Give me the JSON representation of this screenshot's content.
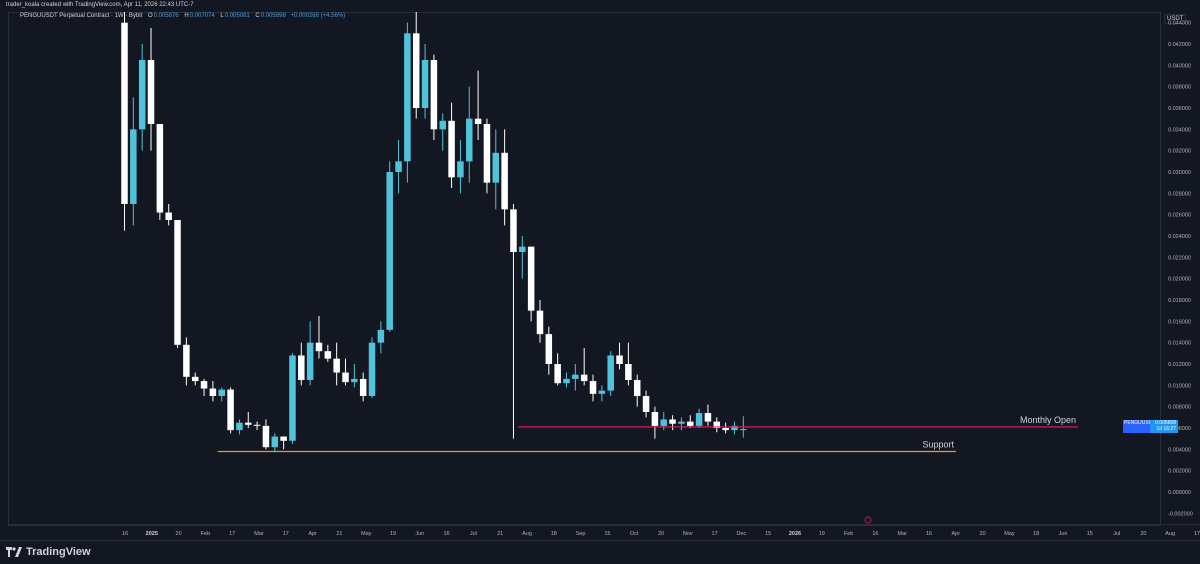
{
  "topbar": {
    "text": "trader_koala created with TradingView.com, Apr 11, 2026 22:43 UTC-7"
  },
  "legend": {
    "symbol": "PENGUUSDT Perpetual Contract · 1W · Bybit",
    "o_label": "O",
    "o_value": "0.005876",
    "h_label": "H",
    "h_value": "0.007074",
    "l_label": "L",
    "l_value": "0.005081",
    "c_label": "C",
    "c_value": "0.005898",
    "change": "+0.000268 (+4.56%)"
  },
  "currency_label": "USDT",
  "price_tag": {
    "symbol": "PENGUUSDT.P",
    "price": "0.005898",
    "countdown": "1d 16:27"
  },
  "footer": {
    "brand": "TradingView"
  },
  "colors": {
    "up": "#4fc3d9",
    "down": "#ffffff",
    "monthly_open": "#e91e63",
    "support": "#ff9800",
    "background": "#131722"
  },
  "chart_data": {
    "type": "candlestick",
    "title": "PENGUUSDT Perpetual Contract · 1W · Bybit",
    "ylim": [
      -0.003,
      0.045
    ],
    "y_ticks": [
      "0.044000",
      "0.042000",
      "0.040000",
      "0.038000",
      "0.036000",
      "0.034000",
      "0.032000",
      "0.030000",
      "0.028000",
      "0.026000",
      "0.024000",
      "0.022000",
      "0.020000",
      "0.018000",
      "0.016000",
      "0.014000",
      "0.012000",
      "0.010000",
      "0.008000",
      "0.006000",
      "0.004000",
      "0.002000",
      "0.000000",
      "-0.002000"
    ],
    "x_ticks": [
      "16",
      "2025",
      "20",
      "Feb",
      "17",
      "Mar",
      "17",
      "Apr",
      "21",
      "May",
      "19",
      "Jun",
      "16",
      "Jul",
      "21",
      "Aug",
      "18",
      "Sep",
      "15",
      "Oct",
      "20",
      "Nov",
      "17",
      "Dec",
      "15",
      "2026",
      "19",
      "Feb",
      "16",
      "Mar",
      "16",
      "Apr",
      "20",
      "May",
      "18",
      "Jun",
      "15",
      "Jul",
      "20",
      "Aug",
      "17",
      "Sep",
      "21",
      "Oct"
    ],
    "x_ticks_bold": [
      "2025",
      "2026"
    ],
    "candles": [
      {
        "o": 0.044,
        "h": 0.05,
        "l": 0.0245,
        "c": 0.027
      },
      {
        "o": 0.027,
        "h": 0.037,
        "l": 0.025,
        "c": 0.034
      },
      {
        "o": 0.034,
        "h": 0.042,
        "l": 0.032,
        "c": 0.0405
      },
      {
        "o": 0.0405,
        "h": 0.0435,
        "l": 0.032,
        "c": 0.0345
      },
      {
        "o": 0.0345,
        "h": 0.0345,
        "l": 0.0255,
        "c": 0.0262
      },
      {
        "o": 0.0262,
        "h": 0.027,
        "l": 0.025,
        "c": 0.0255
      },
      {
        "o": 0.0255,
        "h": 0.0255,
        "l": 0.0135,
        "c": 0.0138
      },
      {
        "o": 0.0138,
        "h": 0.0145,
        "l": 0.01,
        "c": 0.0108
      },
      {
        "o": 0.0108,
        "h": 0.0112,
        "l": 0.01,
        "c": 0.0104
      },
      {
        "o": 0.0104,
        "h": 0.0106,
        "l": 0.009,
        "c": 0.0097
      },
      {
        "o": 0.0097,
        "h": 0.0104,
        "l": 0.0085,
        "c": 0.009
      },
      {
        "o": 0.009,
        "h": 0.0098,
        "l": 0.0085,
        "c": 0.0096
      },
      {
        "o": 0.0096,
        "h": 0.0098,
        "l": 0.0055,
        "c": 0.0058
      },
      {
        "o": 0.0058,
        "h": 0.0068,
        "l": 0.0054,
        "c": 0.0065
      },
      {
        "o": 0.0065,
        "h": 0.0075,
        "l": 0.006,
        "c": 0.0063
      },
      {
        "o": 0.0063,
        "h": 0.0066,
        "l": 0.0058,
        "c": 0.0062
      },
      {
        "o": 0.0062,
        "h": 0.0068,
        "l": 0.004,
        "c": 0.0042
      },
      {
        "o": 0.0042,
        "h": 0.0055,
        "l": 0.0038,
        "c": 0.0052
      },
      {
        "o": 0.0052,
        "h": 0.0052,
        "l": 0.004,
        "c": 0.0048
      },
      {
        "o": 0.0048,
        "h": 0.013,
        "l": 0.0045,
        "c": 0.0128
      },
      {
        "o": 0.0128,
        "h": 0.014,
        "l": 0.01,
        "c": 0.0105
      },
      {
        "o": 0.0105,
        "h": 0.016,
        "l": 0.01,
        "c": 0.014
      },
      {
        "o": 0.014,
        "h": 0.0165,
        "l": 0.0125,
        "c": 0.0132
      },
      {
        "o": 0.0132,
        "h": 0.0138,
        "l": 0.0122,
        "c": 0.0125
      },
      {
        "o": 0.0125,
        "h": 0.014,
        "l": 0.01,
        "c": 0.0112
      },
      {
        "o": 0.0112,
        "h": 0.0125,
        "l": 0.01,
        "c": 0.0103
      },
      {
        "o": 0.0103,
        "h": 0.012,
        "l": 0.0098,
        "c": 0.0106
      },
      {
        "o": 0.0106,
        "h": 0.0112,
        "l": 0.0085,
        "c": 0.009
      },
      {
        "o": 0.009,
        "h": 0.0145,
        "l": 0.0088,
        "c": 0.014
      },
      {
        "o": 0.014,
        "h": 0.016,
        "l": 0.013,
        "c": 0.0152
      },
      {
        "o": 0.0152,
        "h": 0.031,
        "l": 0.015,
        "c": 0.03
      },
      {
        "o": 0.03,
        "h": 0.033,
        "l": 0.028,
        "c": 0.031
      },
      {
        "o": 0.031,
        "h": 0.044,
        "l": 0.029,
        "c": 0.043
      },
      {
        "o": 0.043,
        "h": 0.05,
        "l": 0.035,
        "c": 0.036
      },
      {
        "o": 0.036,
        "h": 0.042,
        "l": 0.035,
        "c": 0.0405
      },
      {
        "o": 0.0405,
        "h": 0.041,
        "l": 0.033,
        "c": 0.034
      },
      {
        "o": 0.034,
        "h": 0.0355,
        "l": 0.032,
        "c": 0.0348
      },
      {
        "o": 0.0348,
        "h": 0.0365,
        "l": 0.0285,
        "c": 0.0295
      },
      {
        "o": 0.0295,
        "h": 0.033,
        "l": 0.028,
        "c": 0.031
      },
      {
        "o": 0.031,
        "h": 0.038,
        "l": 0.029,
        "c": 0.035
      },
      {
        "o": 0.035,
        "h": 0.0395,
        "l": 0.033,
        "c": 0.0345
      },
      {
        "o": 0.0345,
        "h": 0.035,
        "l": 0.028,
        "c": 0.029
      },
      {
        "o": 0.029,
        "h": 0.034,
        "l": 0.0265,
        "c": 0.0318
      },
      {
        "o": 0.0318,
        "h": 0.034,
        "l": 0.025,
        "c": 0.0265
      },
      {
        "o": 0.0265,
        "h": 0.027,
        "l": 0.005,
        "c": 0.0225
      },
      {
        "o": 0.0225,
        "h": 0.024,
        "l": 0.02,
        "c": 0.023
      },
      {
        "o": 0.023,
        "h": 0.023,
        "l": 0.016,
        "c": 0.017
      },
      {
        "o": 0.017,
        "h": 0.018,
        "l": 0.014,
        "c": 0.0148
      },
      {
        "o": 0.0148,
        "h": 0.0155,
        "l": 0.011,
        "c": 0.012
      },
      {
        "o": 0.012,
        "h": 0.013,
        "l": 0.01,
        "c": 0.0102
      },
      {
        "o": 0.0102,
        "h": 0.0112,
        "l": 0.0098,
        "c": 0.0106
      },
      {
        "o": 0.0106,
        "h": 0.012,
        "l": 0.0095,
        "c": 0.011
      },
      {
        "o": 0.011,
        "h": 0.0135,
        "l": 0.01,
        "c": 0.0104
      },
      {
        "o": 0.0104,
        "h": 0.011,
        "l": 0.0085,
        "c": 0.0092
      },
      {
        "o": 0.0092,
        "h": 0.01,
        "l": 0.0085,
        "c": 0.0095
      },
      {
        "o": 0.0095,
        "h": 0.0132,
        "l": 0.009,
        "c": 0.0128
      },
      {
        "o": 0.0128,
        "h": 0.014,
        "l": 0.0115,
        "c": 0.012
      },
      {
        "o": 0.012,
        "h": 0.014,
        "l": 0.01,
        "c": 0.0105
      },
      {
        "o": 0.0105,
        "h": 0.011,
        "l": 0.008,
        "c": 0.009
      },
      {
        "o": 0.009,
        "h": 0.0095,
        "l": 0.007,
        "c": 0.0075
      },
      {
        "o": 0.0075,
        "h": 0.008,
        "l": 0.005,
        "c": 0.0062
      },
      {
        "o": 0.0062,
        "h": 0.0075,
        "l": 0.0058,
        "c": 0.0068
      },
      {
        "o": 0.0068,
        "h": 0.0072,
        "l": 0.0058,
        "c": 0.0064
      },
      {
        "o": 0.0064,
        "h": 0.007,
        "l": 0.0058,
        "c": 0.0066
      },
      {
        "o": 0.0066,
        "h": 0.0072,
        "l": 0.006,
        "c": 0.0062
      },
      {
        "o": 0.0062,
        "h": 0.0078,
        "l": 0.006,
        "c": 0.0074
      },
      {
        "o": 0.0074,
        "h": 0.0082,
        "l": 0.0062,
        "c": 0.0066
      },
      {
        "o": 0.0066,
        "h": 0.007,
        "l": 0.0056,
        "c": 0.006
      },
      {
        "o": 0.006,
        "h": 0.0065,
        "l": 0.0055,
        "c": 0.0058
      },
      {
        "o": 0.0058,
        "h": 0.0066,
        "l": 0.0054,
        "c": 0.0062
      },
      {
        "o": 0.0058,
        "h": 0.0071,
        "l": 0.0051,
        "c": 0.0059
      }
    ],
    "hlines": [
      {
        "label": "Monthly Open",
        "value": 0.0061,
        "from_candle": 45,
        "to_x": 1078
      },
      {
        "label": "Support",
        "value": 0.0038,
        "from_candle": 11,
        "to_x": 956
      }
    ]
  }
}
